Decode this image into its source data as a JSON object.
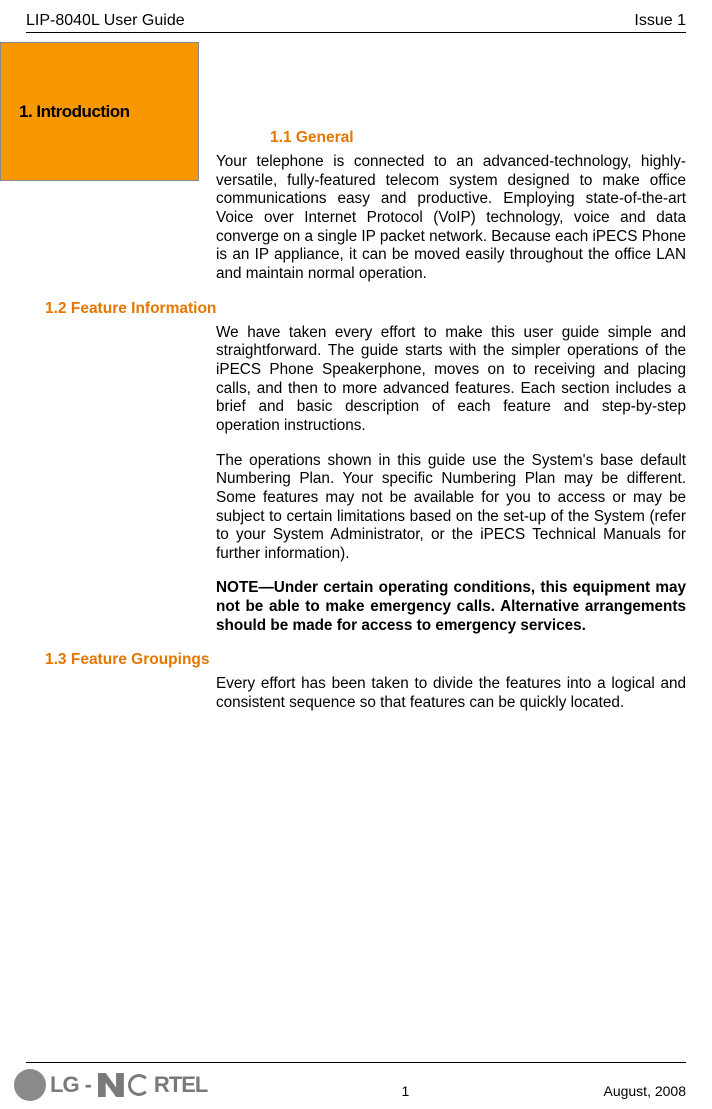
{
  "header": {
    "left": "LIP-8040L User Guide",
    "right": "Issue 1"
  },
  "tab": {
    "label": "1. Introduction",
    "bg_color": "#f79800"
  },
  "sections": {
    "s11": {
      "heading": "1.1    General",
      "body": "Your telephone is connected to an advanced-technology, highly-versatile, fully-featured telecom system designed to make office communications easy and productive.  Employing state-of-the-art Voice over Internet Protocol (VoIP) technology, voice and data converge on a single IP packet network.  Because each iPECS Phone is an IP appliance, it can be moved easily throughout the office LAN and maintain normal operation."
    },
    "s12": {
      "heading": "1.2    Feature Information",
      "p1": "We have taken every effort to make this user guide simple and straightforward.  The guide starts with the simpler operations of the iPECS Phone Speakerphone, moves on to receiving and placing calls, and then to more advanced features.  Each section includes a brief and basic description of each feature and step-by-step operation instructions.",
      "p2": "The operations shown in this guide use the System's base default Numbering Plan.  Your specific Numbering Plan may be different.  Some features may not be available for you to access or may be subject to certain limitations based on the set-up of the System (refer to your System Administrator, or the iPECS Technical Manuals for further information).",
      "note": "NOTE—Under certain operating conditions, this equipment may not be able to make emergency calls. Alternative arrangements should be made for access to emergency services."
    },
    "s13": {
      "heading": "1.3    Feature Groupings",
      "body": "Every effort has been taken to divide the features into a logical and consistent sequence so that features can be quickly located."
    }
  },
  "footer": {
    "page_number": "1",
    "date": "August, 2008",
    "logo": {
      "lg_text": "LG",
      "nortel_text": "RTEL"
    }
  },
  "colors": {
    "heading_color": "#e57700",
    "text_color": "#000000",
    "logo_gray": "#7a7a7a"
  },
  "typography": {
    "body_fontsize": 15.3,
    "heading_fontsize": 15.5,
    "tab_fontsize": 17,
    "header_fontsize": 16
  }
}
